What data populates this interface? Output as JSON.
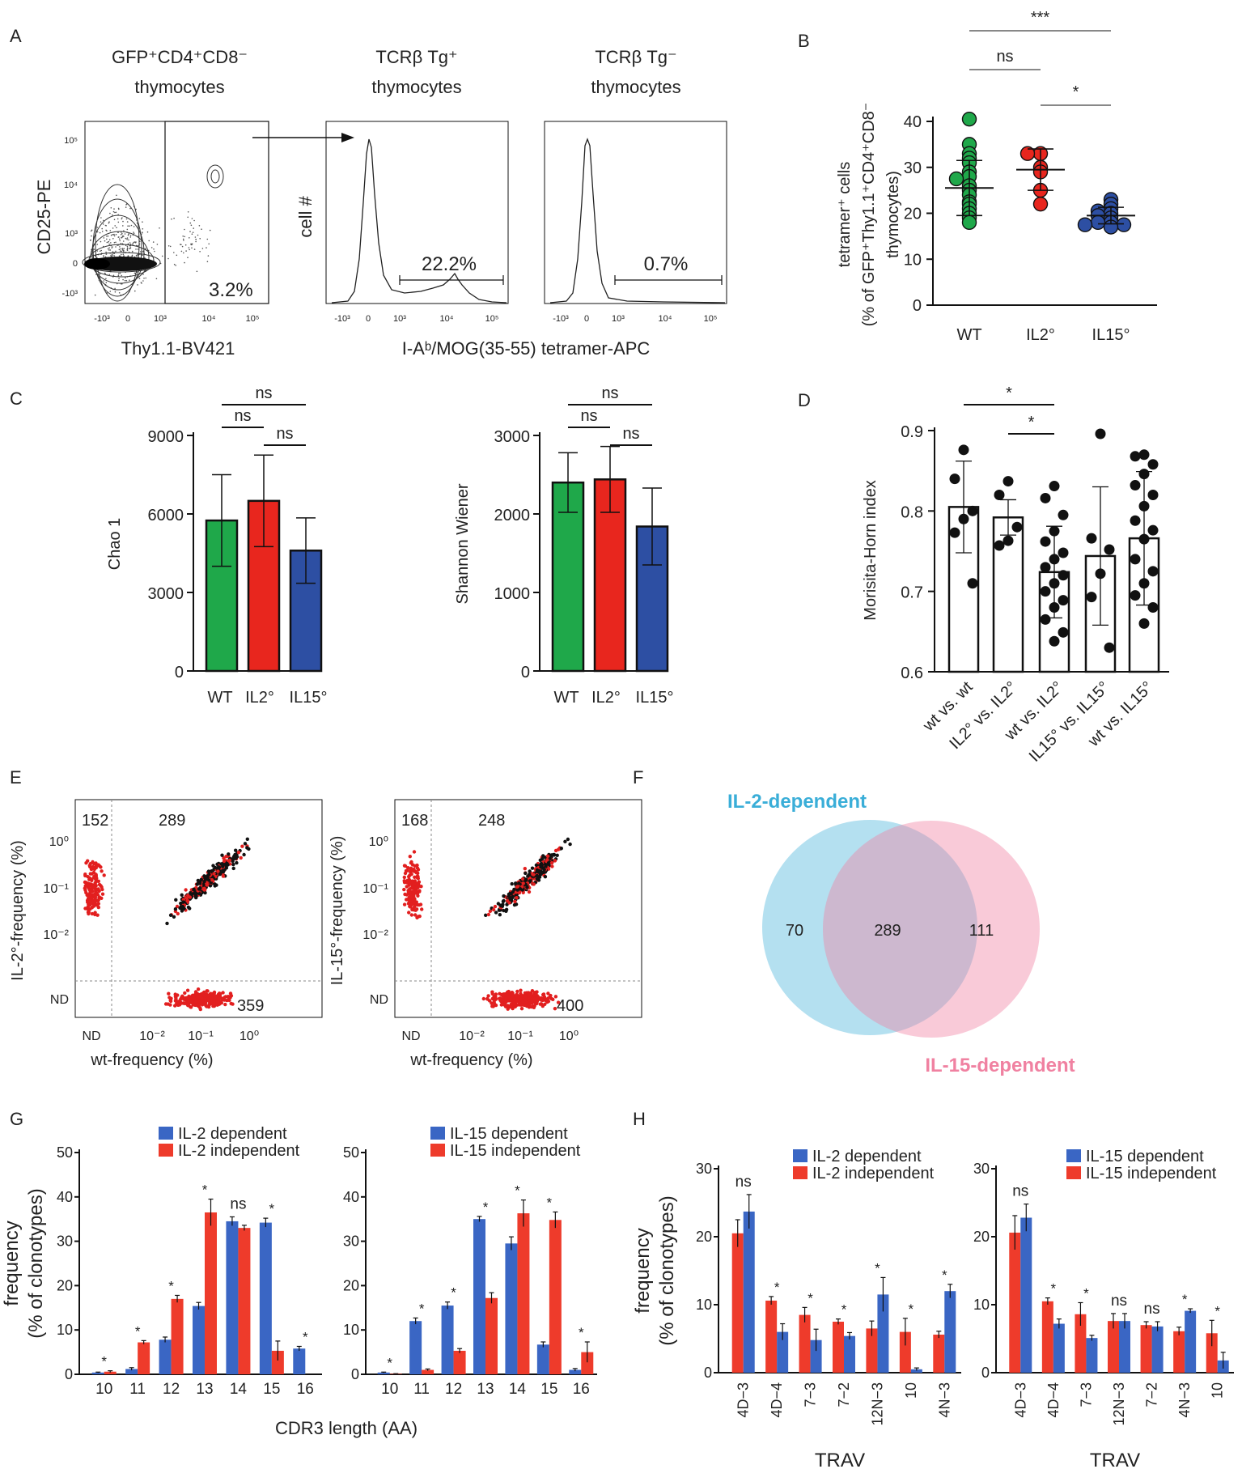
{
  "panels": {
    "A": {
      "letter": "A",
      "plot1_title": [
        "GFP⁺CD4⁺CD8⁻",
        "thymocytes"
      ],
      "plot1_ylabel": "CD25-PE",
      "plot1_xlabel": "Thy1.1-BV421",
      "plot1_gate": "3.2%",
      "plot2_title": [
        "TCRβ Tg⁺",
        "thymocytes"
      ],
      "plot2_gate": "22.2%",
      "plot2_ylabel": "cell #",
      "plot3_title": [
        "TCRβ Tg⁻",
        "thymocytes"
      ],
      "plot3_gate": "0.7%",
      "hist_xlabel": "I-Aᵇ/MOG(35-55) tetramer-APC",
      "facs_ticks_y": [
        "10⁵",
        "10⁴",
        "10³",
        "0",
        "-10³"
      ],
      "facs_ticks_x": [
        "-10³",
        "0",
        "10³",
        "10⁴",
        "10⁵"
      ]
    },
    "B": {
      "letter": "B"
    },
    "C": {
      "letter": "C"
    },
    "D": {
      "letter": "D"
    },
    "E": {
      "letter": "E"
    },
    "F": {
      "letter": "F"
    },
    "G": {
      "letter": "G",
      "xlabel": "CDR3 length (AA)"
    },
    "H": {
      "letter": "H"
    }
  },
  "chart_data": [
    {
      "id": "B",
      "type": "scatter",
      "categories": [
        "WT",
        "IL2°",
        "IL15°"
      ],
      "ylabel": [
        "tetramer⁺ cells",
        "(% of GFP⁺Thy1.1⁺CD4⁺CD8⁻",
        "thymocytes)"
      ],
      "ylim": [
        0,
        40
      ],
      "yticks": [
        0,
        10,
        20,
        30,
        40
      ],
      "colors": [
        "#1fa84a",
        "#e8261e",
        "#2d4fa3"
      ],
      "points": [
        [
          40.5,
          35,
          33,
          32,
          31,
          29,
          28,
          27.5,
          26,
          25,
          24,
          22.5,
          22,
          21,
          20,
          19,
          18
        ],
        [
          33,
          33,
          30,
          29,
          25,
          22
        ],
        [
          23,
          22,
          21,
          20.5,
          20,
          19.5,
          19,
          18,
          18,
          17.5,
          17.5,
          17
        ]
      ],
      "mean": [
        25.5,
        29.5,
        19.5
      ],
      "sd": [
        6.0,
        4.5,
        1.8
      ],
      "significance": [
        {
          "pair": [
            0,
            2
          ],
          "label": "***"
        },
        {
          "pair": [
            0,
            1
          ],
          "label": "ns"
        },
        {
          "pair": [
            1,
            2
          ],
          "label": "*"
        }
      ]
    },
    {
      "id": "C1",
      "type": "bar",
      "categories": [
        "WT",
        "IL2°",
        "IL15°"
      ],
      "values": [
        5750,
        6500,
        4600
      ],
      "errors": [
        1750,
        1750,
        1250
      ],
      "ylabel": "Chao 1",
      "ylim": [
        0,
        9000
      ],
      "yticks": [
        0,
        3000,
        6000,
        9000
      ],
      "colors": [
        "#1fa84a",
        "#e8261e",
        "#2d4fa3"
      ],
      "significance": [
        {
          "pair": [
            0,
            2
          ],
          "label": "ns"
        },
        {
          "pair": [
            0,
            1
          ],
          "label": "ns"
        },
        {
          "pair": [
            1,
            2
          ],
          "label": "ns"
        }
      ]
    },
    {
      "id": "C2",
      "type": "bar",
      "categories": [
        "WT",
        "IL2°",
        "IL15°"
      ],
      "values": [
        2400,
        2440,
        1840
      ],
      "errors": [
        380,
        420,
        490
      ],
      "ylabel": "Shannon Wiener",
      "ylim": [
        0,
        3000
      ],
      "yticks": [
        0,
        1000,
        2000,
        3000
      ],
      "colors": [
        "#1fa84a",
        "#e8261e",
        "#2d4fa3"
      ],
      "significance": [
        {
          "pair": [
            0,
            2
          ],
          "label": "ns"
        },
        {
          "pair": [
            0,
            1
          ],
          "label": "ns"
        },
        {
          "pair": [
            1,
            2
          ],
          "label": "ns"
        }
      ]
    },
    {
      "id": "D",
      "type": "bar",
      "categories": [
        "wt vs. wt",
        "IL2° vs. IL2°",
        "wt vs. IL2°",
        "IL15° vs. IL15°",
        "wt vs. IL15°"
      ],
      "values": [
        0.805,
        0.792,
        0.724,
        0.744,
        0.766
      ],
      "errors": [
        0.057,
        0.022,
        0.057,
        0.086,
        0.083
      ],
      "ylabel": "Morisita-Horn index",
      "ylim": [
        0.6,
        0.9
      ],
      "yticks": [
        0.6,
        0.7,
        0.8,
        0.9
      ],
      "points": [
        [
          0.876,
          0.84,
          0.8,
          0.79,
          0.773,
          0.71
        ],
        [
          0.837,
          0.82,
          0.78,
          0.763,
          0.757
        ],
        [
          0.831,
          0.816,
          0.795,
          0.775,
          0.762,
          0.748,
          0.74,
          0.73,
          0.72,
          0.71,
          0.7,
          0.689,
          0.68,
          0.665,
          0.649,
          0.638
        ],
        [
          0.896,
          0.766,
          0.752,
          0.722,
          0.693,
          0.63
        ],
        [
          0.87,
          0.868,
          0.858,
          0.846,
          0.832,
          0.82,
          0.806,
          0.788,
          0.776,
          0.765,
          0.74,
          0.725,
          0.71,
          0.695,
          0.68,
          0.66
        ]
      ],
      "significance": [
        {
          "pair": [
            0,
            2
          ],
          "label": "*"
        },
        {
          "pair": [
            1,
            2
          ],
          "label": "*"
        }
      ]
    },
    {
      "id": "E1",
      "type": "scatter",
      "xlabel": "wt-frequency (%)",
      "ylabel": "IL-2°-frequency (%)",
      "counts": [
        "152",
        "289",
        "359"
      ],
      "ticks": [
        "ND",
        "10⁻²",
        "10⁻¹",
        "10⁰"
      ]
    },
    {
      "id": "E2",
      "type": "scatter",
      "xlabel": "wt-frequency (%)",
      "ylabel": "IL-15°-frequency (%)",
      "counts": [
        "168",
        "248",
        "400"
      ],
      "ticks": [
        "ND",
        "10⁻²",
        "10⁻¹",
        "10⁰"
      ]
    },
    {
      "id": "F",
      "type": "venn",
      "sets": [
        "IL-2-dependent",
        "IL-15-dependent"
      ],
      "values": [
        "70",
        "289",
        "111"
      ],
      "colors": [
        "#3aaed8",
        "#f081a1"
      ]
    },
    {
      "id": "G1",
      "type": "bar",
      "categories": [
        "10",
        "11",
        "12",
        "13",
        "14",
        "15",
        "16"
      ],
      "series": [
        {
          "name": "IL-2 dependent",
          "color": "#3a66c4",
          "values": [
            0.4,
            1.2,
            7.8,
            15.4,
            34.5,
            34.2,
            5.8
          ],
          "errors": [
            0.1,
            0.3,
            0.6,
            0.8,
            1.0,
            1.0,
            0.5
          ]
        },
        {
          "name": "IL-2 independent",
          "color": "#ee3b2b",
          "values": [
            0.6,
            7.2,
            17.0,
            36.5,
            33.0,
            5.3,
            0.0
          ],
          "errors": [
            0.2,
            0.4,
            0.8,
            3.0,
            0.6,
            2.2,
            0.0
          ]
        }
      ],
      "labels": [
        "*",
        "*",
        "*",
        "*",
        "ns",
        "*",
        "*"
      ],
      "ylabel": [
        "frequency",
        "(% of clonotypes)"
      ],
      "ylim": [
        0,
        50
      ],
      "yticks": [
        0,
        10,
        20,
        30,
        40,
        50
      ]
    },
    {
      "id": "G2",
      "type": "bar",
      "categories": [
        "10",
        "11",
        "12",
        "13",
        "14",
        "15",
        "16"
      ],
      "series": [
        {
          "name": "IL-15 dependent",
          "color": "#3a66c4",
          "values": [
            0.4,
            12.0,
            15.5,
            35.0,
            29.5,
            6.7,
            1.0
          ],
          "errors": [
            0.1,
            0.7,
            0.8,
            0.6,
            1.5,
            0.6,
            0.3
          ]
        },
        {
          "name": "IL-15 independent",
          "color": "#ee3b2b",
          "values": [
            0.1,
            1.0,
            5.3,
            17.2,
            36.3,
            34.8,
            5.0
          ],
          "errors": [
            0.05,
            0.2,
            0.5,
            1.2,
            3.0,
            1.8,
            2.3
          ]
        }
      ],
      "labels": [
        "*",
        "*",
        "*",
        "*",
        "*",
        "*",
        "*"
      ],
      "ylim": [
        0,
        50
      ],
      "yticks": [
        0,
        10,
        20,
        30,
        40,
        50
      ]
    },
    {
      "id": "H1",
      "type": "bar",
      "categories": [
        "4D−3",
        "4D−4",
        "7−3",
        "7−2",
        "12N−3",
        "10",
        "4N−3"
      ],
      "series": [
        {
          "name": "IL-2 independent",
          "color": "#ee3b2b",
          "values": [
            20.5,
            10.6,
            8.5,
            7.5,
            6.5,
            6.0,
            5.6
          ],
          "errors": [
            2.0,
            0.6,
            1.1,
            0.4,
            1.1,
            2.0,
            0.5
          ]
        },
        {
          "name": "IL-2 dependent",
          "color": "#3a66c4",
          "values": [
            23.7,
            6.0,
            4.8,
            5.4,
            11.5,
            0.5,
            12.0
          ],
          "errors": [
            2.5,
            1.2,
            1.6,
            0.5,
            2.5,
            0.2,
            1.0
          ]
        }
      ],
      "legend_order": [
        "IL-2 dependent",
        "IL-2 independent"
      ],
      "labels": [
        "ns",
        "*",
        "*",
        "*",
        "*",
        "*",
        "*"
      ],
      "xlabel": "TRAV",
      "ylabel": [
        "frequency",
        "(% of clonotypes)"
      ],
      "ylim": [
        0,
        30
      ],
      "yticks": [
        0,
        10,
        20,
        30
      ]
    },
    {
      "id": "H2",
      "type": "bar",
      "categories": [
        "4D−3",
        "4D−4",
        "7−3",
        "12N−3",
        "7−2",
        "4N−3",
        "10"
      ],
      "series": [
        {
          "name": "IL-15 independent",
          "color": "#ee3b2b",
          "values": [
            20.6,
            10.5,
            8.6,
            7.6,
            7.0,
            6.1,
            5.8
          ],
          "errors": [
            2.5,
            0.5,
            1.7,
            1.1,
            0.5,
            0.6,
            1.9
          ]
        },
        {
          "name": "IL-15 dependent",
          "color": "#3a66c4",
          "values": [
            22.8,
            7.2,
            5.1,
            7.6,
            6.8,
            9.1,
            1.8
          ],
          "errors": [
            2.0,
            0.7,
            0.4,
            1.1,
            0.7,
            0.3,
            1.2
          ]
        }
      ],
      "legend_order": [
        "IL-15 dependent",
        "IL-15 independent"
      ],
      "labels": [
        "ns",
        "*",
        "*",
        "ns",
        "ns",
        "*",
        "*"
      ],
      "xlabel": "TRAV",
      "ylim": [
        0,
        30
      ],
      "yticks": [
        0,
        10,
        20,
        30
      ]
    }
  ]
}
